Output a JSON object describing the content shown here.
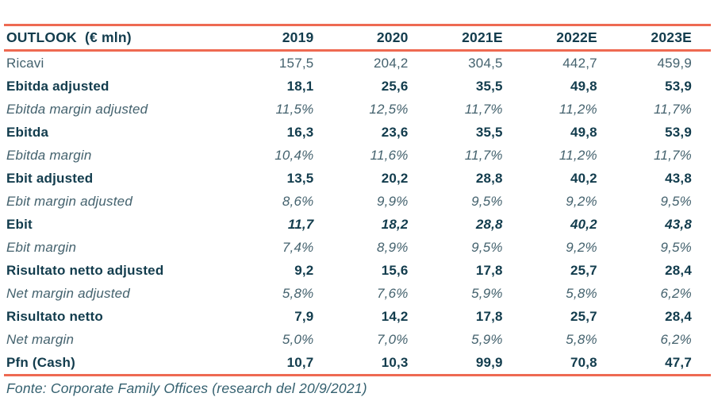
{
  "colors": {
    "accent_line": "#ee6a52",
    "text_bold": "#123c4d",
    "text_regular": "#44626e",
    "text_footer": "#34606f"
  },
  "table": {
    "title": "OUTLOOK  (€ mln)",
    "columns": [
      "2019",
      "2020",
      "2021E",
      "2022E",
      "2023E"
    ],
    "rows": [
      {
        "label": "Ricavi",
        "style": "regular",
        "values": [
          "157,5",
          "204,2",
          "304,5",
          "442,7",
          "459,9"
        ]
      },
      {
        "label": "Ebitda adjusted",
        "style": "bold",
        "values": [
          "18,1",
          "25,6",
          "35,5",
          "49,8",
          "53,9"
        ]
      },
      {
        "label": "Ebitda margin adjusted",
        "style": "italic",
        "values": [
          "11,5%",
          "12,5%",
          "11,7%",
          "11,2%",
          "11,7%"
        ]
      },
      {
        "label": "Ebitda",
        "style": "bold",
        "values": [
          "16,3",
          "23,6",
          "35,5",
          "49,8",
          "53,9"
        ]
      },
      {
        "label": "Ebitda margin",
        "style": "italic",
        "values": [
          "10,4%",
          "11,6%",
          "11,7%",
          "11,2%",
          "11,7%"
        ]
      },
      {
        "label": "Ebit adjusted",
        "style": "bold",
        "values": [
          "13,5",
          "20,2",
          "28,8",
          "40,2",
          "43,8"
        ]
      },
      {
        "label": "Ebit margin adjusted",
        "style": "italic",
        "values": [
          "8,6%",
          "9,9%",
          "9,5%",
          "9,2%",
          "9,5%"
        ]
      },
      {
        "label": "Ebit",
        "style": "bold-italic-values",
        "values": [
          "11,7",
          "18,2",
          "28,8",
          "40,2",
          "43,8"
        ]
      },
      {
        "label": "Ebit margin",
        "style": "italic",
        "values": [
          "7,4%",
          "8,9%",
          "9,5%",
          "9,2%",
          "9,5%"
        ]
      },
      {
        "label": "Risultato netto adjusted",
        "style": "bold",
        "values": [
          "9,2",
          "15,6",
          "17,8",
          "25,7",
          "28,4"
        ]
      },
      {
        "label": "Net margin adjusted",
        "style": "italic",
        "values": [
          "5,8%",
          "7,6%",
          "5,9%",
          "5,8%",
          "6,2%"
        ]
      },
      {
        "label": "Risultato netto",
        "style": "bold",
        "values": [
          "7,9",
          "14,2",
          "17,8",
          "25,7",
          "28,4"
        ]
      },
      {
        "label": "Net margin",
        "style": "italic",
        "values": [
          "5,0%",
          "7,0%",
          "5,9%",
          "5,8%",
          "6,2%"
        ]
      },
      {
        "label": "Pfn (Cash)",
        "style": "bold",
        "values": [
          "10,7",
          "10,3",
          "99,9",
          "70,8",
          "47,7"
        ]
      }
    ],
    "footer": "Fonte: Corporate Family Offices (research del 20/9/2021)"
  }
}
